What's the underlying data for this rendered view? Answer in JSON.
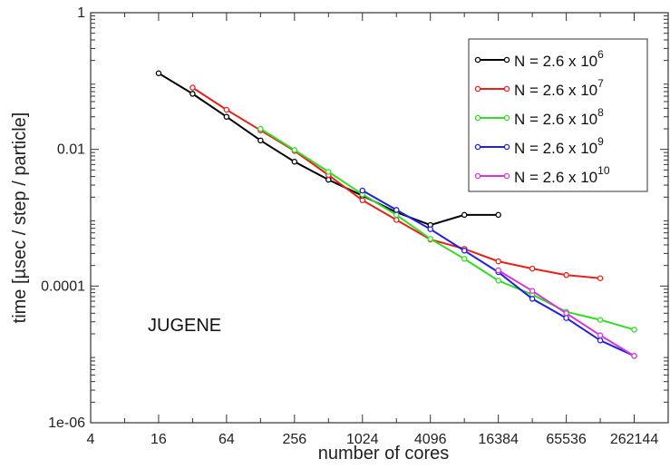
{
  "chart_data": {
    "type": "line",
    "title": "",
    "xlabel": "number of cores",
    "ylabel": "time [µsec / step / particle]",
    "x_scale": "log2",
    "y_scale": "log10",
    "xlim": [
      4,
      524288
    ],
    "ylim": [
      1e-06,
      1
    ],
    "x_ticks": [
      4,
      16,
      64,
      256,
      1024,
      4096,
      16384,
      65536,
      262144
    ],
    "x_tick_labels": [
      "4",
      "16",
      "64",
      "256",
      "1024",
      "4096",
      "16384",
      "65536",
      "262144"
    ],
    "y_ticks": [
      1e-06,
      0.0001,
      0.01,
      1
    ],
    "y_tick_labels": [
      "1e-06",
      "0.0001",
      "0.01",
      "1"
    ],
    "grid": false,
    "legend_position": "top-right",
    "annotation": "JUGENE",
    "series": [
      {
        "name": "N = 2.6 x 10^6",
        "label_base": "N = 2.6 x 10",
        "label_exp": "6",
        "color": "#000000",
        "x": [
          16,
          32,
          64,
          128,
          256,
          512,
          1024,
          2048,
          4096,
          8192,
          16384
        ],
        "y": [
          0.13,
          0.065,
          0.03,
          0.0135,
          0.0066,
          0.0036,
          0.0021,
          0.0012,
          0.00078,
          0.0011,
          0.0011
        ]
      },
      {
        "name": "N = 2.6 x 10^7",
        "label_base": "N = 2.6 x 10",
        "label_exp": "7",
        "color": "#e8211b",
        "x": [
          32,
          64,
          128,
          256,
          512,
          1024,
          2048,
          4096,
          8192,
          16384,
          32768,
          65536,
          131072
        ],
        "y": [
          0.08,
          0.038,
          0.019,
          0.0095,
          0.0042,
          0.0018,
          0.00093,
          0.00048,
          0.00035,
          0.00023,
          0.00018,
          0.000145,
          0.00013
        ]
      },
      {
        "name": "N = 2.6 x 10^8",
        "label_base": "N = 2.6 x 10",
        "label_exp": "8",
        "color": "#33dd22",
        "x": [
          128,
          256,
          512,
          1024,
          2048,
          4096,
          8192,
          16384,
          32768,
          65536,
          131072,
          262144
        ],
        "y": [
          0.02,
          0.0098,
          0.0047,
          0.0022,
          0.0011,
          0.00049,
          0.00025,
          0.00012,
          7.5e-05,
          4.2e-05,
          3.2e-05,
          2.3e-05
        ]
      },
      {
        "name": "N = 2.6 x 10^9",
        "label_base": "N = 2.6 x 10",
        "label_exp": "9",
        "color": "#2020e0",
        "x": [
          1024,
          2048,
          4096,
          8192,
          16384,
          32768,
          65536,
          131072,
          262144
        ],
        "y": [
          0.0025,
          0.0013,
          0.00068,
          0.00033,
          0.00016,
          6.5e-05,
          3.4e-05,
          1.6e-05,
          9.5e-06
        ]
      },
      {
        "name": "N = 2.6 x 10^10",
        "label_base": "N = 2.6 x 10",
        "label_exp": "10",
        "color": "#dd33dd",
        "x": [
          16384,
          32768,
          65536,
          131072,
          262144
        ],
        "y": [
          0.00017,
          8.5e-05,
          4e-05,
          1.9e-05,
          9.5e-06
        ]
      }
    ]
  }
}
